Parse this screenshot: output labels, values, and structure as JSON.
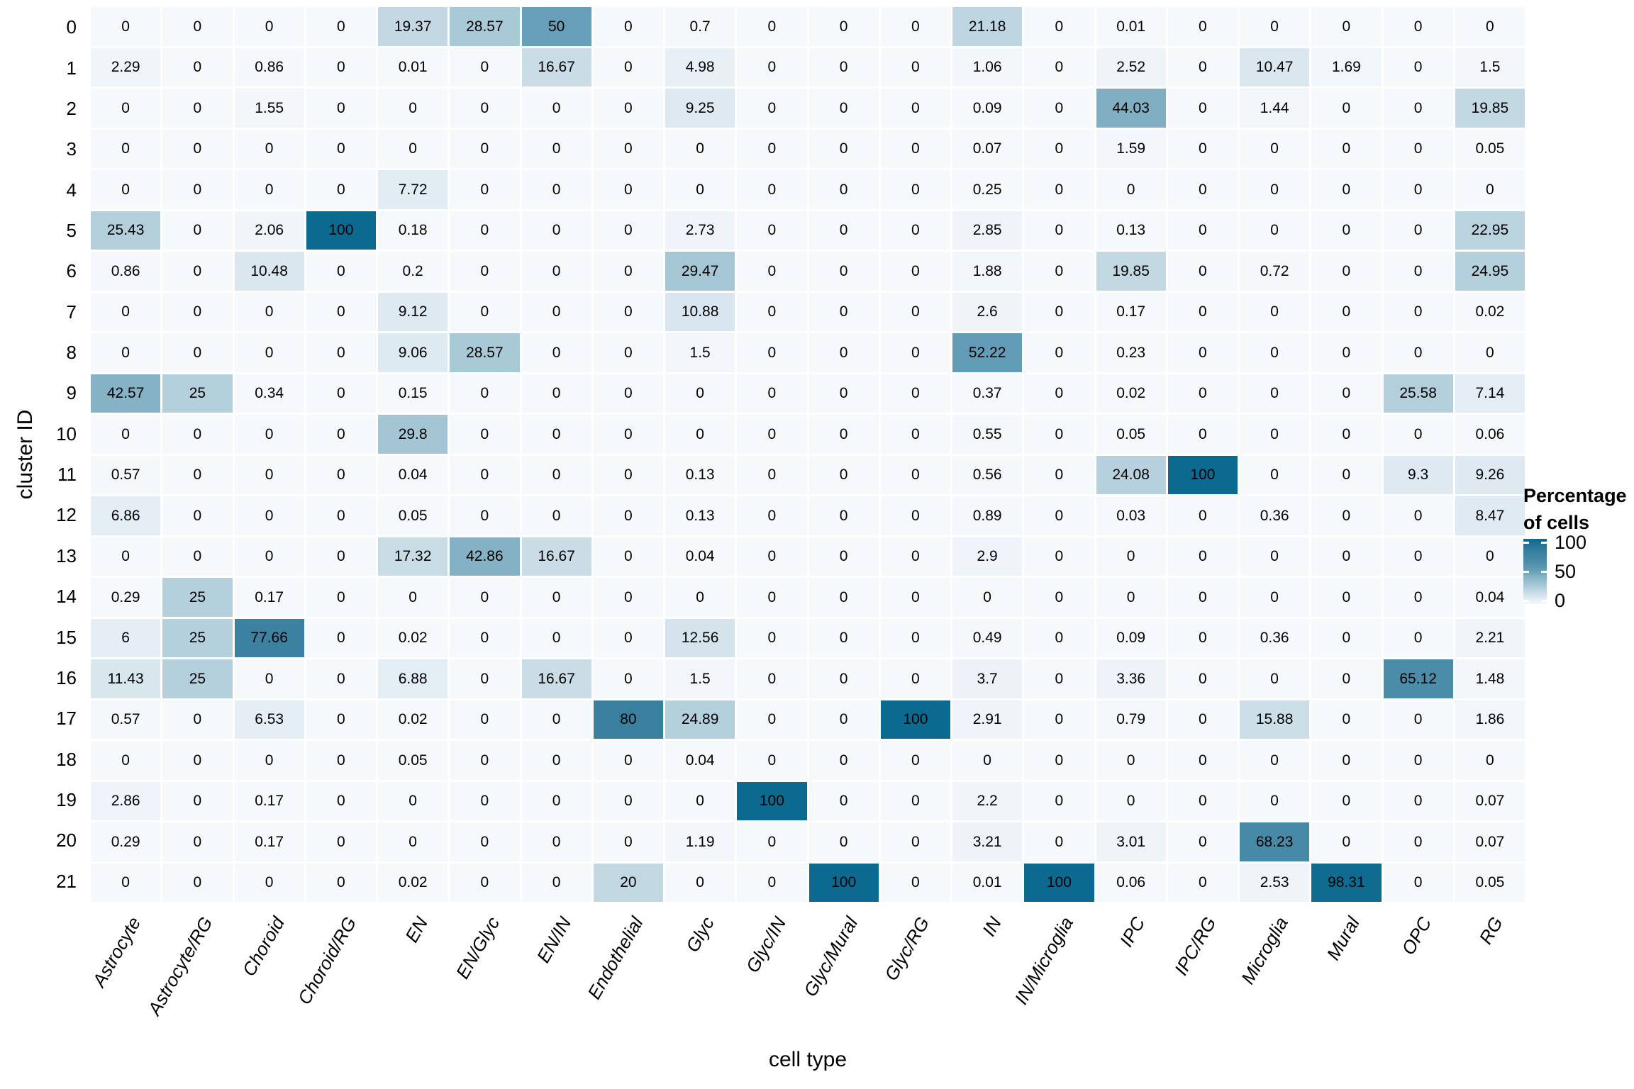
{
  "chart_data": {
    "type": "heatmap",
    "xlabel": "cell type",
    "ylabel": "cluster ID",
    "grid": "off",
    "legend_position": "right",
    "columns": [
      "Astrocyte",
      "Astrocyte/RG",
      "Choroid",
      "Choroid/RG",
      "EN",
      "EN/Glyc",
      "EN/IN",
      "Endothelial",
      "Glyc",
      "Glyc/IN",
      "Glyc/Mural",
      "Glyc/RG",
      "IN",
      "IN/Microglia",
      "IPC",
      "IPC/RG",
      "Microglia",
      "Mural",
      "OPC",
      "RG"
    ],
    "rows": [
      "0",
      "1",
      "2",
      "3",
      "4",
      "5",
      "6",
      "7",
      "8",
      "9",
      "10",
      "11",
      "12",
      "13",
      "14",
      "15",
      "16",
      "17",
      "18",
      "19",
      "20",
      "21"
    ],
    "values": [
      [
        "0",
        "0",
        "0",
        "0",
        "19.37",
        "28.57",
        "50",
        "0",
        "0.7",
        "0",
        "0",
        "0",
        "21.18",
        "0",
        "0.01",
        "0",
        "0",
        "0",
        "0",
        "0"
      ],
      [
        "2.29",
        "0",
        "0.86",
        "0",
        "0.01",
        "0",
        "16.67",
        "0",
        "4.98",
        "0",
        "0",
        "0",
        "1.06",
        "0",
        "2.52",
        "0",
        "10.47",
        "1.69",
        "0",
        "1.5"
      ],
      [
        "0",
        "0",
        "1.55",
        "0",
        "0",
        "0",
        "0",
        "0",
        "9.25",
        "0",
        "0",
        "0",
        "0.09",
        "0",
        "44.03",
        "0",
        "1.44",
        "0",
        "0",
        "19.85"
      ],
      [
        "0",
        "0",
        "0",
        "0",
        "0",
        "0",
        "0",
        "0",
        "0",
        "0",
        "0",
        "0",
        "0.07",
        "0",
        "1.59",
        "0",
        "0",
        "0",
        "0",
        "0.05"
      ],
      [
        "0",
        "0",
        "0",
        "0",
        "7.72",
        "0",
        "0",
        "0",
        "0",
        "0",
        "0",
        "0",
        "0.25",
        "0",
        "0",
        "0",
        "0",
        "0",
        "0",
        "0"
      ],
      [
        "25.43",
        "0",
        "2.06",
        "100",
        "0.18",
        "0",
        "0",
        "0",
        "2.73",
        "0",
        "0",
        "0",
        "2.85",
        "0",
        "0.13",
        "0",
        "0",
        "0",
        "0",
        "22.95"
      ],
      [
        "0.86",
        "0",
        "10.48",
        "0",
        "0.2",
        "0",
        "0",
        "0",
        "29.47",
        "0",
        "0",
        "0",
        "1.88",
        "0",
        "19.85",
        "0",
        "0.72",
        "0",
        "0",
        "24.95"
      ],
      [
        "0",
        "0",
        "0",
        "0",
        "9.12",
        "0",
        "0",
        "0",
        "10.88",
        "0",
        "0",
        "0",
        "2.6",
        "0",
        "0.17",
        "0",
        "0",
        "0",
        "0",
        "0.02"
      ],
      [
        "0",
        "0",
        "0",
        "0",
        "9.06",
        "28.57",
        "0",
        "0",
        "1.5",
        "0",
        "0",
        "0",
        "52.22",
        "0",
        "0.23",
        "0",
        "0",
        "0",
        "0",
        "0"
      ],
      [
        "42.57",
        "25",
        "0.34",
        "0",
        "0.15",
        "0",
        "0",
        "0",
        "0",
        "0",
        "0",
        "0",
        "0.37",
        "0",
        "0.02",
        "0",
        "0",
        "0",
        "25.58",
        "7.14"
      ],
      [
        "0",
        "0",
        "0",
        "0",
        "29.8",
        "0",
        "0",
        "0",
        "0",
        "0",
        "0",
        "0",
        "0.55",
        "0",
        "0.05",
        "0",
        "0",
        "0",
        "0",
        "0.06"
      ],
      [
        "0.57",
        "0",
        "0",
        "0",
        "0.04",
        "0",
        "0",
        "0",
        "0.13",
        "0",
        "0",
        "0",
        "0.56",
        "0",
        "24.08",
        "100",
        "0",
        "0",
        "9.3",
        "9.26"
      ],
      [
        "6.86",
        "0",
        "0",
        "0",
        "0.05",
        "0",
        "0",
        "0",
        "0.13",
        "0",
        "0",
        "0",
        "0.89",
        "0",
        "0.03",
        "0",
        "0.36",
        "0",
        "0",
        "8.47"
      ],
      [
        "0",
        "0",
        "0",
        "0",
        "17.32",
        "42.86",
        "16.67",
        "0",
        "0.04",
        "0",
        "0",
        "0",
        "2.9",
        "0",
        "0",
        "0",
        "0",
        "0",
        "0",
        "0"
      ],
      [
        "0.29",
        "25",
        "0.17",
        "0",
        "0",
        "0",
        "0",
        "0",
        "0",
        "0",
        "0",
        "0",
        "0",
        "0",
        "0",
        "0",
        "0",
        "0",
        "0",
        "0.04"
      ],
      [
        "6",
        "25",
        "77.66",
        "0",
        "0.02",
        "0",
        "0",
        "0",
        "12.56",
        "0",
        "0",
        "0",
        "0.49",
        "0",
        "0.09",
        "0",
        "0.36",
        "0",
        "0",
        "2.21"
      ],
      [
        "11.43",
        "25",
        "0",
        "0",
        "6.88",
        "0",
        "16.67",
        "0",
        "1.5",
        "0",
        "0",
        "0",
        "3.7",
        "0",
        "3.36",
        "0",
        "0",
        "0",
        "65.12",
        "1.48"
      ],
      [
        "0.57",
        "0",
        "6.53",
        "0",
        "0.02",
        "0",
        "0",
        "80",
        "24.89",
        "0",
        "0",
        "100",
        "2.91",
        "0",
        "0.79",
        "0",
        "15.88",
        "0",
        "0",
        "1.86"
      ],
      [
        "0",
        "0",
        "0",
        "0",
        "0.05",
        "0",
        "0",
        "0",
        "0.04",
        "0",
        "0",
        "0",
        "0",
        "0",
        "0",
        "0",
        "0",
        "0",
        "0",
        "0"
      ],
      [
        "2.86",
        "0",
        "0.17",
        "0",
        "0",
        "0",
        "0",
        "0",
        "0",
        "100",
        "0",
        "0",
        "2.2",
        "0",
        "0",
        "0",
        "0",
        "0",
        "0",
        "0.07"
      ],
      [
        "0.29",
        "0",
        "0.17",
        "0",
        "0",
        "0",
        "0",
        "0",
        "1.19",
        "0",
        "0",
        "0",
        "3.21",
        "0",
        "3.01",
        "0",
        "68.23",
        "0",
        "0",
        "0.07"
      ],
      [
        "0",
        "0",
        "0",
        "0",
        "0.02",
        "0",
        "0",
        "20",
        "0",
        "0",
        "100",
        "0",
        "0.01",
        "100",
        "0.06",
        "0",
        "2.53",
        "98.31",
        "0",
        "0.05"
      ]
    ],
    "legend": {
      "title_line1": "Percentage",
      "title_line2": "of cells",
      "scale_min": 0,
      "scale_max": 100,
      "ticks": [
        {
          "label": "100",
          "value": 100
        },
        {
          "label": "50",
          "value": 50
        },
        {
          "label": "0",
          "value": 0
        }
      ],
      "color_stops": [
        {
          "value": 0,
          "color": "#f6f9fc"
        },
        {
          "value": 5,
          "color": "#e8f0f6"
        },
        {
          "value": 10,
          "color": "#dce8f0"
        },
        {
          "value": 17,
          "color": "#c9dce6"
        },
        {
          "value": 25,
          "color": "#b4d0dc"
        },
        {
          "value": 30,
          "color": "#a3c6d4"
        },
        {
          "value": 43,
          "color": "#84b1c4"
        },
        {
          "value": 50,
          "color": "#679fb8"
        },
        {
          "value": 65,
          "color": "#4b8da9"
        },
        {
          "value": 80,
          "color": "#397f9e"
        },
        {
          "value": 100,
          "color": "#0c6990"
        }
      ]
    },
    "colors": {
      "cell_text": "#000000",
      "background": "#ffffff",
      "gridline": "#ffffff"
    }
  }
}
